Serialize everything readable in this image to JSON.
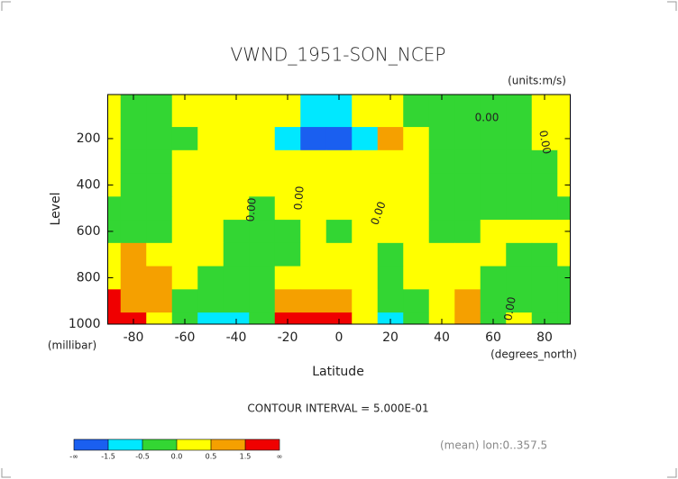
{
  "chart_data": {
    "type": "contour",
    "title": "VWND_1951-SON_NCEP",
    "units": "(units:m/s)",
    "y_label": "Level",
    "y_unit": "(millibar)",
    "x_label": "Latitude",
    "x_unit": "(degrees_north)",
    "contour_interval": "CONTOUR INTERVAL = 5.000E-01",
    "footnote": "(mean) lon:0..357.5",
    "contour_labels": [
      "0.00",
      "0.00",
      "0.00",
      "0.00",
      "0.00",
      "0.00"
    ],
    "xlim": [
      -90,
      90
    ],
    "xticks": [
      -80,
      -60,
      -40,
      -20,
      0,
      20,
      40,
      60,
      80
    ],
    "ylim": [
      1000,
      10
    ],
    "yticks": [
      200,
      400,
      600,
      800,
      1000
    ],
    "x": [
      -90,
      -80,
      -70,
      -60,
      -50,
      -40,
      -30,
      -20,
      -10,
      0,
      10,
      20,
      30,
      40,
      50,
      60,
      70,
      80,
      90
    ],
    "y": [
      100,
      200,
      300,
      400,
      500,
      600,
      700,
      800,
      900,
      1000
    ],
    "z": [
      [
        0.2,
        -0.2,
        -0.2,
        0.2,
        0.2,
        0.2,
        0.2,
        0.2,
        -0.7,
        -0.7,
        0.2,
        0.2,
        -0.2,
        -0.2,
        -0.2,
        -0.2,
        -0.2,
        0.2,
        0.2
      ],
      [
        0.2,
        -0.2,
        -0.2,
        -0.2,
        0.2,
        0.2,
        0.2,
        -1,
        -2,
        -2,
        -0.8,
        0.8,
        0.2,
        -0.3,
        -0.3,
        -0.3,
        -0.3,
        0.2,
        0.2
      ],
      [
        0.2,
        -0.2,
        -0.2,
        0.2,
        0.2,
        0.2,
        0.2,
        0.2,
        0.2,
        0.2,
        0.2,
        0.2,
        0.2,
        -0.2,
        -0.2,
        -0.2,
        -0.2,
        -0.2,
        0.2
      ],
      [
        0.2,
        -0.2,
        -0.2,
        0.2,
        0.2,
        0.2,
        0.2,
        0.2,
        0.2,
        0.2,
        0.2,
        0.2,
        0.2,
        -0.2,
        -0.2,
        -0.2,
        -0.2,
        -0.2,
        0.2
      ],
      [
        -0.2,
        -0.2,
        -0.2,
        0.2,
        0.2,
        0.2,
        -0.2,
        0.2,
        0.2,
        0.2,
        0.2,
        0.2,
        0.2,
        -0.2,
        -0.2,
        -0.2,
        -0.2,
        -0.2,
        -0.2
      ],
      [
        -0.2,
        -0.2,
        -0.2,
        0.2,
        0.2,
        -0.2,
        -0.2,
        -0.2,
        0.2,
        -0.2,
        0.2,
        0.2,
        0.2,
        -0.2,
        -0.2,
        0.2,
        0.2,
        0.2,
        0.2
      ],
      [
        0.2,
        1,
        0.2,
        0.2,
        0.2,
        -0.2,
        -0.2,
        -0.2,
        0.2,
        0.2,
        0.2,
        -0.2,
        0.2,
        0.2,
        0.2,
        0.2,
        -0.2,
        -0.2,
        0.2
      ],
      [
        0.2,
        1,
        1,
        0.2,
        -0.2,
        -0.2,
        -0.2,
        0.2,
        0.2,
        0.2,
        0.2,
        -0.2,
        0.2,
        0.2,
        0.2,
        -0.2,
        -0.2,
        -0.2,
        -0.2
      ],
      [
        2,
        1,
        1,
        -0.2,
        -0.2,
        -0.2,
        -0.2,
        1,
        1,
        1,
        0.2,
        -0.2,
        -0.2,
        0.2,
        1,
        -0.2,
        -0.2,
        -0.2,
        -0.2
      ],
      [
        2,
        2,
        0.2,
        -0.2,
        -1,
        -1,
        -0.2,
        2,
        2,
        2,
        0.2,
        -1.2,
        -0.2,
        0.2,
        1,
        -0.2,
        0.2,
        -0.2,
        -0.2
      ]
    ],
    "colorbar": {
      "colors": [
        "#1a5ff0",
        "#00e8ff",
        "#33d633",
        "#ffff00",
        "#f5a000",
        "#f00000"
      ],
      "levels": [
        {
          "value": -1.5,
          "label": "-1.5"
        },
        {
          "value": -0.5,
          "label": "-0.5"
        },
        {
          "value": 0,
          "label": "0.0"
        },
        {
          "value": 0.5,
          "label": "0.5"
        },
        {
          "value": 1.5,
          "label": "1.5"
        }
      ],
      "low_label": "-∞",
      "high_label": "∞"
    }
  }
}
